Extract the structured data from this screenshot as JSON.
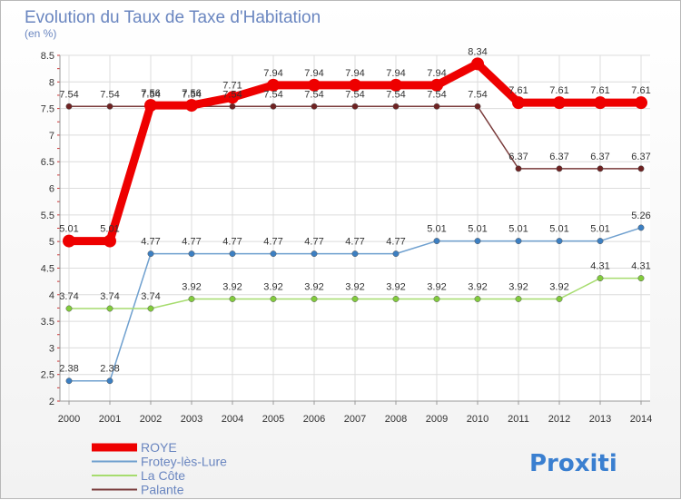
{
  "chart_data": {
    "type": "line",
    "title": "Evolution du Taux de Taxe d'Habitation",
    "subtitle": "(en %)",
    "x": [
      "2000",
      "2001",
      "2002",
      "2003",
      "2004",
      "2005",
      "2006",
      "2007",
      "2008",
      "2009",
      "2010",
      "2011",
      "2012",
      "2013",
      "2014"
    ],
    "ylim": [
      2,
      8.5
    ],
    "yticks": [
      "2",
      "2.5",
      "3",
      "3.5",
      "4",
      "4.5",
      "5",
      "5.5",
      "6",
      "6.5",
      "7",
      "7.5",
      "8",
      "8.5"
    ],
    "grid": true,
    "legend_position": "bottom-left",
    "series": [
      {
        "name": "ROYE",
        "color": "#ee0000",
        "values": [
          5.01,
          5.01,
          7.56,
          7.56,
          7.71,
          7.94,
          7.94,
          7.94,
          7.94,
          7.94,
          8.34,
          7.61,
          7.61,
          7.61,
          7.61
        ],
        "labels": [
          "5.01",
          "5.01",
          "7.56",
          "7.56",
          "7.71",
          "7.94",
          "7.94",
          "7.94",
          "7.94",
          "7.94",
          "8.34",
          "7.61",
          "7.61",
          "7.61",
          "7.61"
        ]
      },
      {
        "name": "Frotey-lès-Lure",
        "color": "#6fa0cf",
        "values": [
          2.38,
          2.38,
          4.77,
          4.77,
          4.77,
          4.77,
          4.77,
          4.77,
          4.77,
          5.01,
          5.01,
          5.01,
          5.01,
          5.01,
          5.26
        ],
        "labels": [
          "2.38",
          "2.38",
          "4.77",
          "4.77",
          "4.77",
          "4.77",
          "4.77",
          "4.77",
          "4.77",
          "5.01",
          "5.01",
          "5.01",
          "5.01",
          "5.01",
          "5.26"
        ]
      },
      {
        "name": "La Côte",
        "color": "#a6dc6e",
        "values": [
          3.74,
          3.74,
          3.74,
          3.92,
          3.92,
          3.92,
          3.92,
          3.92,
          3.92,
          3.92,
          3.92,
          3.92,
          3.92,
          4.31,
          4.31
        ],
        "labels": [
          "3.74",
          "3.74",
          "3.74",
          "3.92",
          "3.92",
          "3.92",
          "3.92",
          "3.92",
          "3.92",
          "3.92",
          "3.92",
          "3.92",
          "3.92",
          "4.31",
          "4.31"
        ]
      },
      {
        "name": "Palante",
        "color": "#7a3b3b",
        "values": [
          7.54,
          7.54,
          7.54,
          7.54,
          7.54,
          7.54,
          7.54,
          7.54,
          7.54,
          7.54,
          7.54,
          6.37,
          6.37,
          6.37,
          6.37
        ],
        "labels": [
          "7.54",
          "7.54",
          "7.54",
          "7.54",
          "7.54",
          "7.54",
          "7.54",
          "7.54",
          "7.54",
          "7.54",
          "7.54",
          "6.37",
          "6.37",
          "6.37",
          "6.37"
        ]
      }
    ]
  },
  "brand": {
    "text": "Proxiti"
  }
}
